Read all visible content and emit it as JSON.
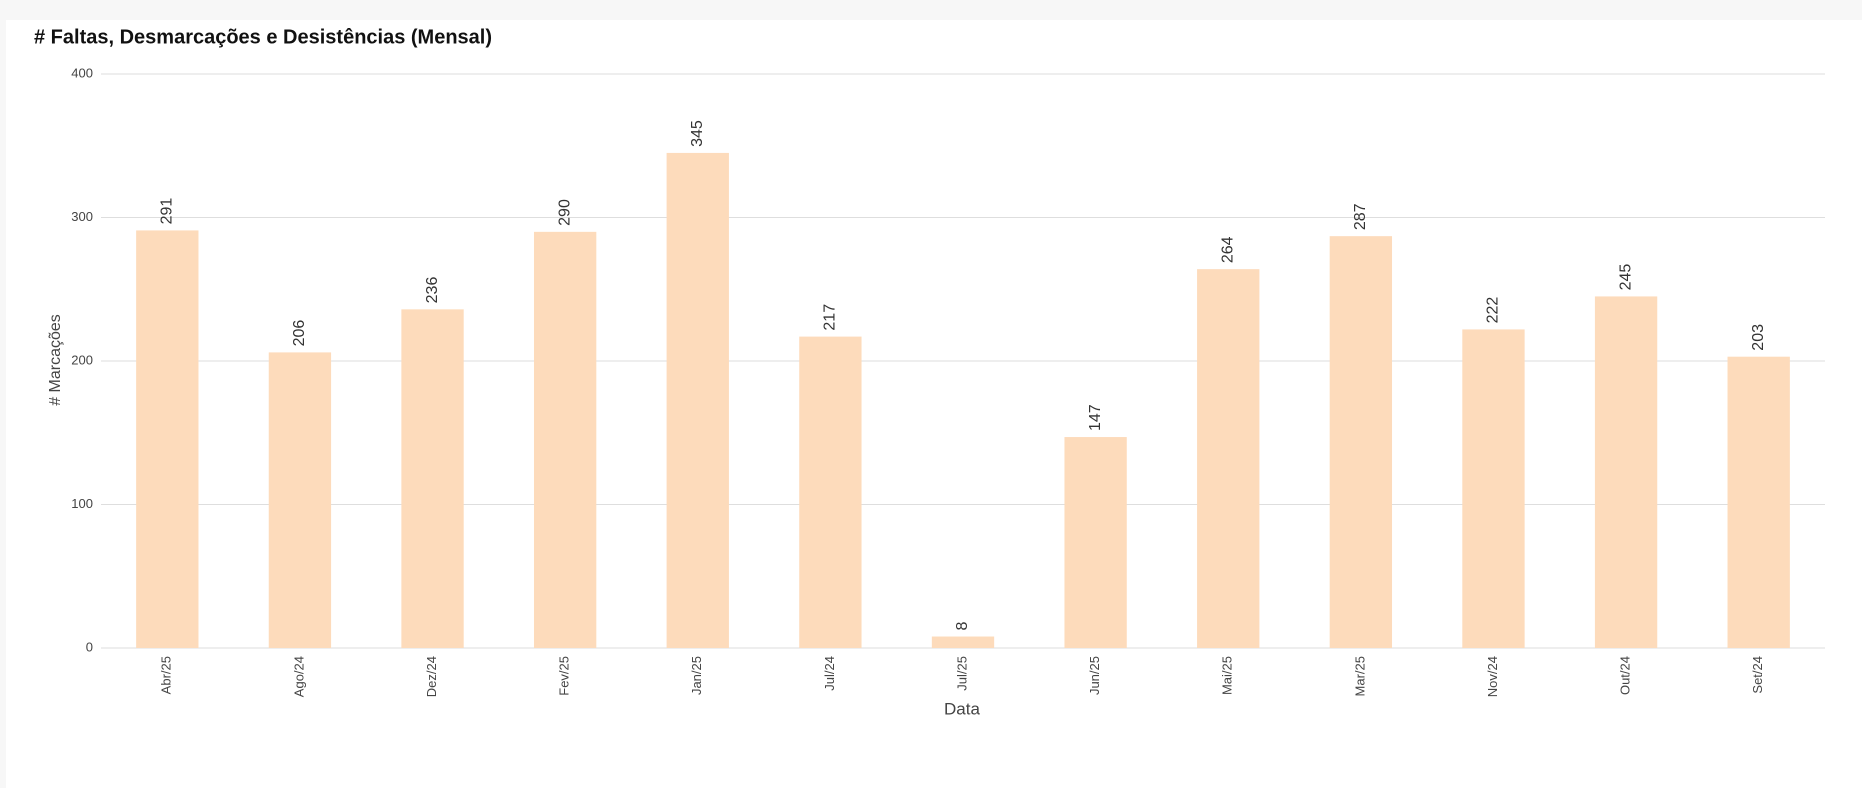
{
  "chart_data": {
    "type": "bar",
    "title": "# Faltas, Desmarcações e Desistências (Mensal)",
    "x_label": "Data",
    "y_label": "# Marcações",
    "categories": [
      "Abr/25",
      "Ago/24",
      "Dez/24",
      "Fev/25",
      "Jan/25",
      "Jul/24",
      "Jul/25",
      "Jun/25",
      "Mai/25",
      "Mar/25",
      "Nov/24",
      "Out/24",
      "Set/24"
    ],
    "values": [
      291,
      206,
      236,
      290,
      345,
      217,
      8,
      147,
      264,
      287,
      222,
      245,
      203
    ],
    "color": "#fddbbb",
    "ylim": [
      0,
      400
    ],
    "yticks": [
      0,
      100,
      200,
      300,
      400
    ],
    "grid": true
  }
}
